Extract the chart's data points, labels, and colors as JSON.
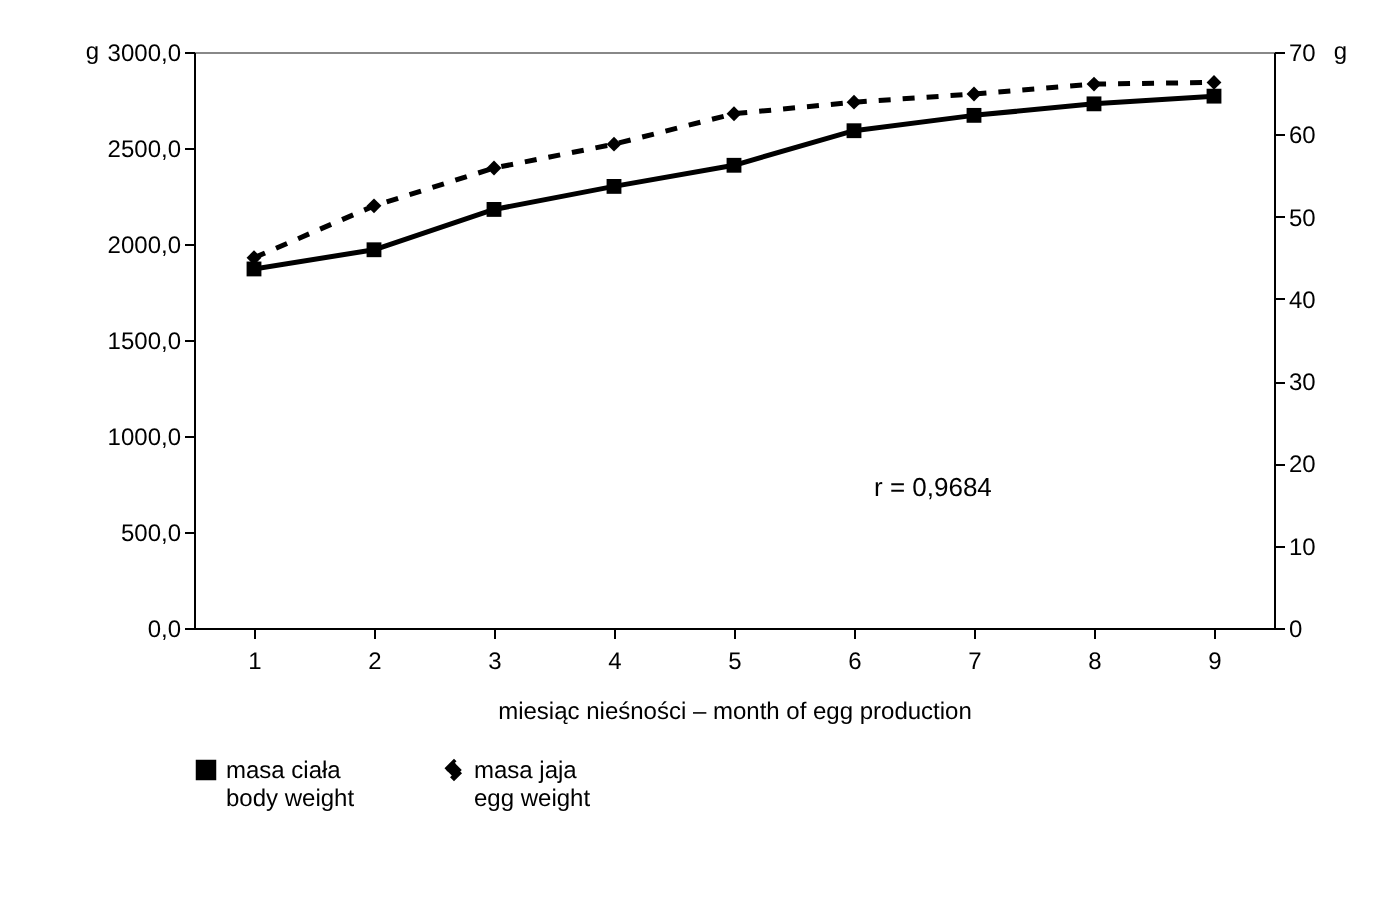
{
  "chart_data": {
    "type": "line",
    "xlabel": "miesiąc nieśności – month of egg production",
    "ylabel": "g",
    "y2label": "g",
    "categories": [
      "1",
      "2",
      "3",
      "4",
      "5",
      "6",
      "7",
      "8",
      "9"
    ],
    "series": [
      {
        "name": "masa ciała\nbody weight",
        "color": "#000000",
        "marker": "square",
        "line_style": "solid",
        "values": [
          1870,
          1970,
          2180,
          2300,
          2410,
          2590,
          2670,
          2730,
          2770
        ]
      },
      {
        "name": "masa jaja\negg weight",
        "color": "#000000",
        "marker": "diamond",
        "line_style": "dashed",
        "axis": "y2",
        "values": [
          45.0,
          51.3,
          55.9,
          58.8,
          62.5,
          63.9,
          64.9,
          66.1,
          66.3
        ]
      }
    ],
    "ylim": [
      0,
      3000
    ],
    "yticks": [
      {
        "value": 0,
        "label": "0,0"
      },
      {
        "value": 500,
        "label": "500,0"
      },
      {
        "value": 1000,
        "label": "1000,0"
      },
      {
        "value": 1500,
        "label": "1500,0"
      },
      {
        "value": 2000,
        "label": "2000,0"
      },
      {
        "value": 2500,
        "label": "2500,0"
      },
      {
        "value": 3000,
        "label": "3000,0"
      }
    ],
    "y2lim": [
      0,
      70
    ],
    "y2ticks": [
      0,
      10,
      20,
      30,
      40,
      50,
      60,
      70
    ],
    "annotations": [
      "r = 0,9684"
    ],
    "grid": false,
    "legend": "bottom"
  }
}
